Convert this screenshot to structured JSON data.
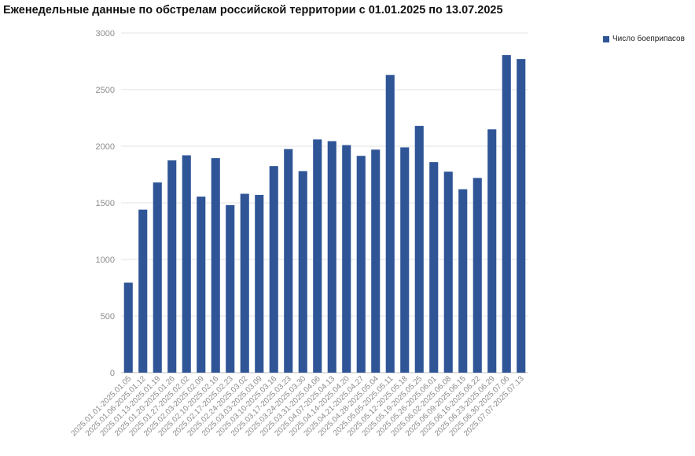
{
  "chart_data": {
    "type": "bar",
    "title": "Еженедельные данные по обстрелам российской территории с 01.01.2025 по 13.07.2025",
    "xlabel": "",
    "ylabel": "",
    "ylim": [
      0,
      3000
    ],
    "yticks": [
      0,
      500,
      1000,
      1500,
      2000,
      2500,
      3000
    ],
    "grid": true,
    "legend_position": "top-right",
    "color": "#2f5597",
    "categories": [
      "2025.01.01-2025.01.05",
      "2025.01.06-2025.01.12",
      "2025.01.13-2025.01.19",
      "2025.01.20-2025.01.26",
      "2025.01.27-2025.02.02",
      "2025.02.03-2025.02.09",
      "2025.02.10-2025.02.16",
      "2025.02.17-2025.02.23",
      "2025.02.24-2025.03.02",
      "2025.03.03-2025.03.09",
      "2025.03.10-2025.03.16",
      "2025.03.17-2025.03.23",
      "2025.03.24-2025.03.30",
      "2025.03.31-2025.04.06",
      "2025.04.07-2025.04.13",
      "2025.04.14-2025.04.20",
      "2025.04.21-2025.04.27",
      "2025.04.28-2025.05.04",
      "2025.05.05-2025.05.11",
      "2025.05.12-2025.05.18",
      "2025.05.19-2025.05.25",
      "2025.05.26-2025.06.01",
      "2025.06.02-2025.06.08",
      "2025.06.09-2025.06.15",
      "2025.06.16-2025.06.22",
      "2025.06.23-2025.06.29",
      "2025.06.30-2025.07.06",
      "2025.07.07-2025.07.13"
    ],
    "series": [
      {
        "name": "Число боеприпасов",
        "values": [
          795,
          1440,
          1680,
          1875,
          1920,
          1555,
          1895,
          1480,
          1580,
          1570,
          1825,
          1975,
          1780,
          2060,
          2045,
          2010,
          1915,
          1970,
          2630,
          1990,
          2180,
          1860,
          1775,
          1620,
          1720,
          2150,
          2805,
          2770
        ]
      }
    ]
  }
}
